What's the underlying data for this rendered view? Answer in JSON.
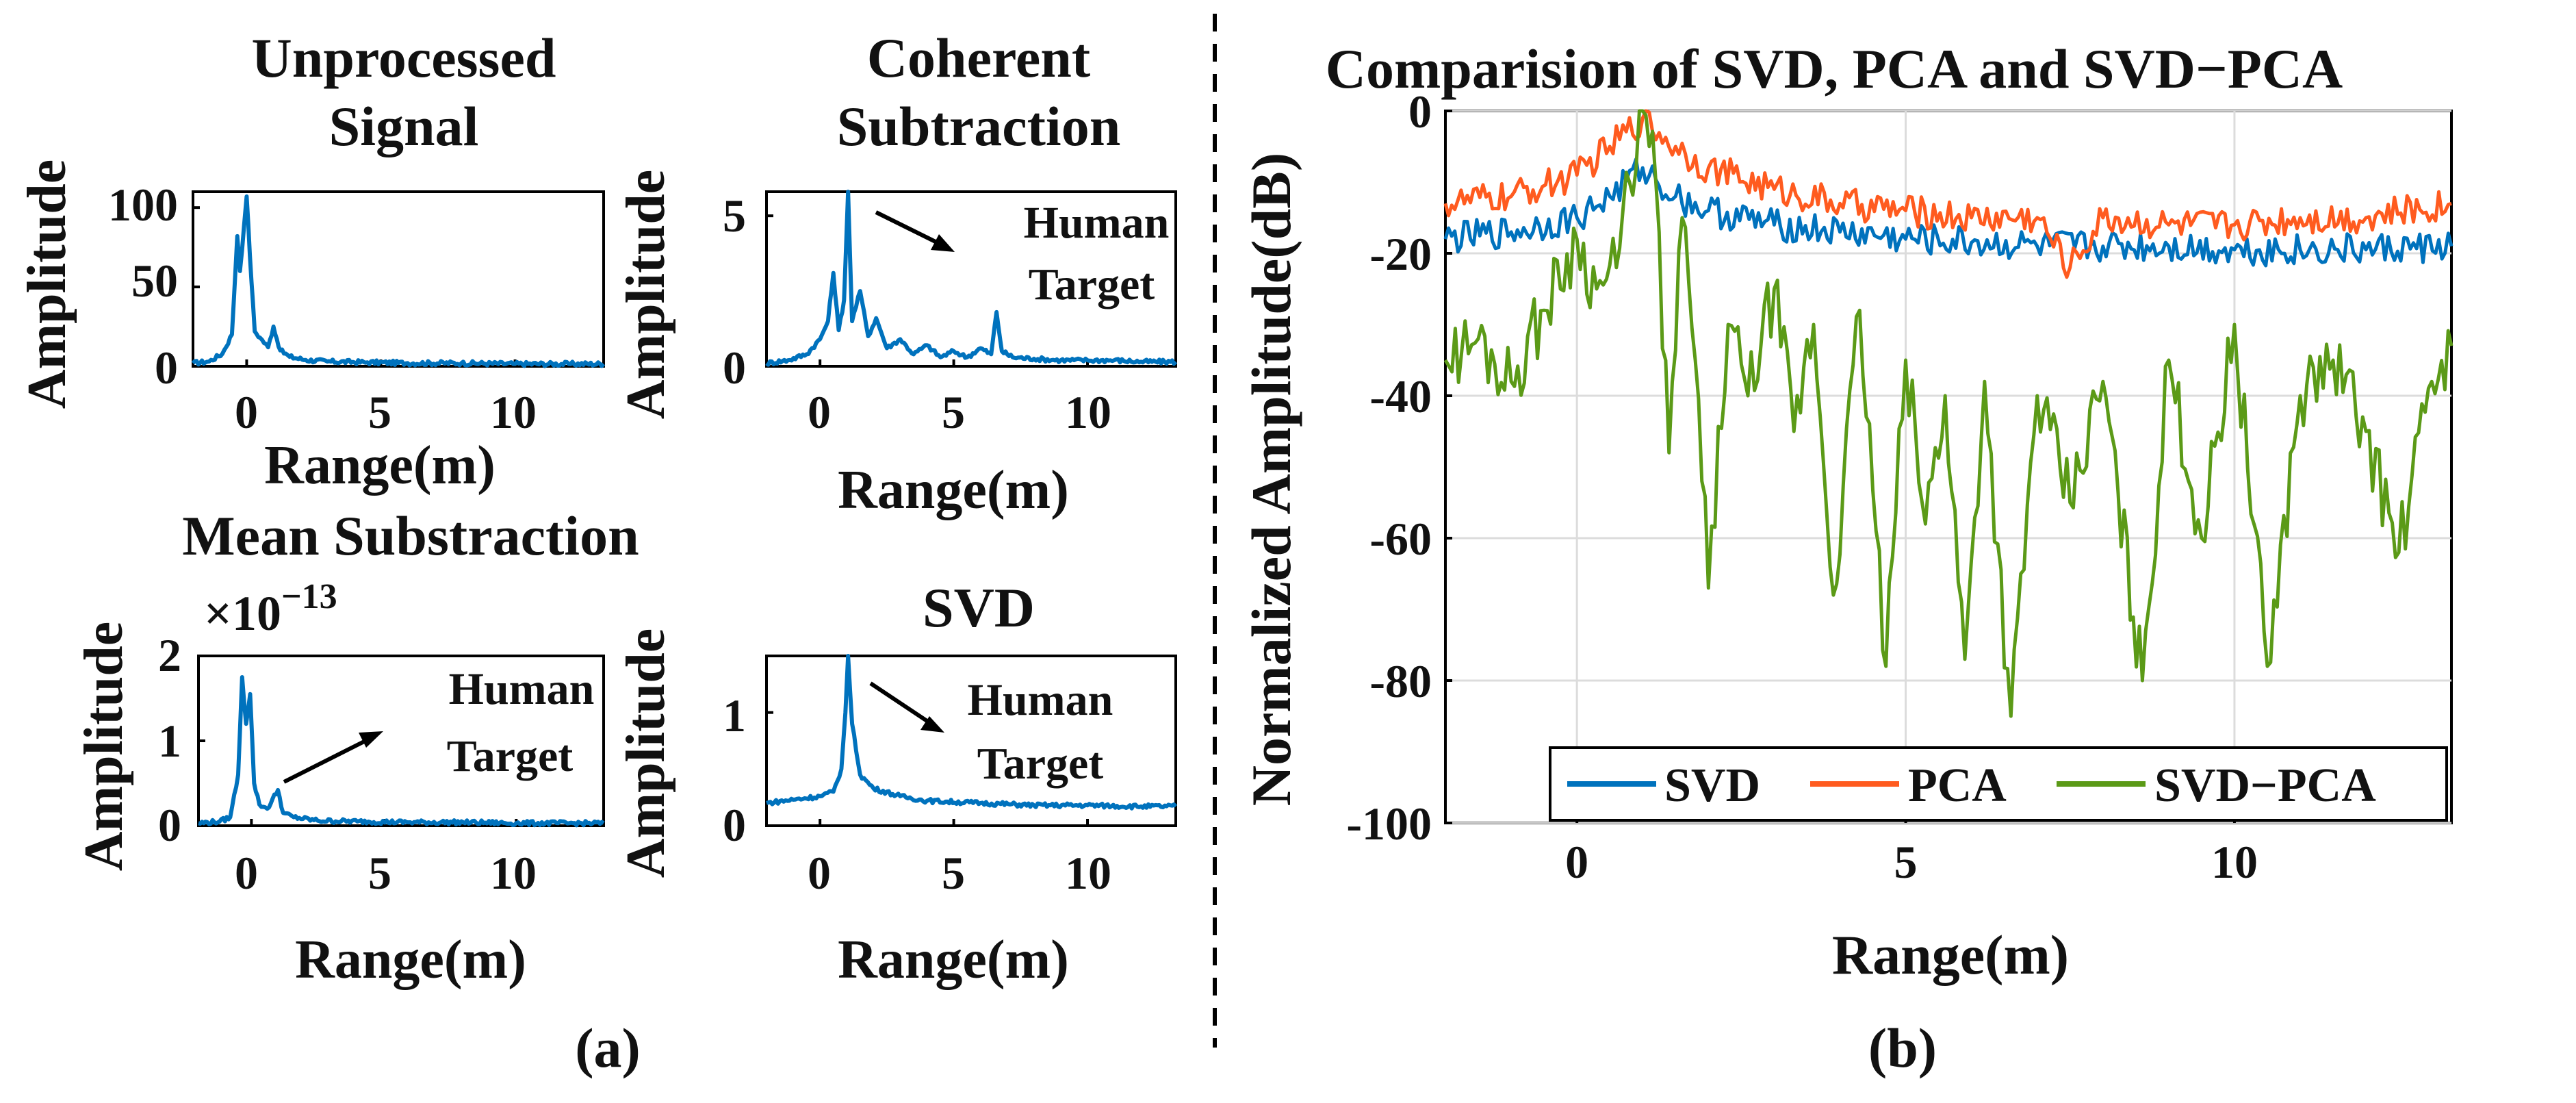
{
  "figure": {
    "label_a": "(a)",
    "label_b": "(b)",
    "colors": {
      "svd": "#0072BD",
      "pca": "#FF5B1F",
      "svd_pca": "#5B9A17",
      "axis": "#000000",
      "grid": "#dcdcdc"
    }
  },
  "chart_data": [
    {
      "id": "unprocessed",
      "type": "line",
      "title": [
        "Unprocessed",
        "Signal"
      ],
      "xlabel": "Range(m)",
      "ylabel": "Amplitude",
      "xlim": [
        -2,
        13.3
      ],
      "ylim": [
        0,
        110
      ],
      "xticks": [
        0,
        5,
        10
      ],
      "yticks": [
        0,
        50,
        100
      ],
      "series": [
        {
          "name": "Unprocessed",
          "color": "#0072BD",
          "values": [
            [
              -2,
              2
            ],
            [
              -1.4,
              3
            ],
            [
              -0.9,
              8
            ],
            [
              -0.55,
              20
            ],
            [
              -0.35,
              82
            ],
            [
              -0.25,
              60
            ],
            [
              -0.1,
              88
            ],
            [
              0,
              107
            ],
            [
              0.12,
              70
            ],
            [
              0.3,
              22
            ],
            [
              0.5,
              18
            ],
            [
              0.8,
              12
            ],
            [
              1.0,
              25
            ],
            [
              1.25,
              10
            ],
            [
              1.6,
              6
            ],
            [
              2.2,
              4
            ],
            [
              3,
              3
            ],
            [
              4.5,
              2.5
            ],
            [
              6,
              2
            ],
            [
              8,
              2
            ],
            [
              10,
              1.5
            ],
            [
              12,
              1.5
            ],
            [
              13.3,
              1.5
            ]
          ]
        }
      ]
    },
    {
      "id": "coherent",
      "type": "line",
      "title": [
        "Coherent",
        "Subtraction"
      ],
      "xlabel": "Range(m)",
      "ylabel": "Amplitude",
      "xlim": [
        -2,
        13.3
      ],
      "ylim": [
        0,
        5.8
      ],
      "xticks": [
        0,
        5,
        10
      ],
      "yticks": [
        0,
        5
      ],
      "annotation": [
        "Human",
        "Target"
      ],
      "series": [
        {
          "name": "Coherent",
          "color": "#0072BD",
          "values": [
            [
              -2,
              0.1
            ],
            [
              -1.2,
              0.2
            ],
            [
              -0.5,
              0.4
            ],
            [
              0,
              0.9
            ],
            [
              0.3,
              1.5
            ],
            [
              0.5,
              3.1
            ],
            [
              0.7,
              1.2
            ],
            [
              0.9,
              2.2
            ],
            [
              1.05,
              5.8
            ],
            [
              1.2,
              1.5
            ],
            [
              1.5,
              2.5
            ],
            [
              1.8,
              1.0
            ],
            [
              2.1,
              1.6
            ],
            [
              2.5,
              0.6
            ],
            [
              3.0,
              0.9
            ],
            [
              3.5,
              0.4
            ],
            [
              4.0,
              0.7
            ],
            [
              4.5,
              0.3
            ],
            [
              5.0,
              0.5
            ],
            [
              5.5,
              0.3
            ],
            [
              6.0,
              0.6
            ],
            [
              6.4,
              0.4
            ],
            [
              6.6,
              1.8
            ],
            [
              6.8,
              0.5
            ],
            [
              7.2,
              0.3
            ],
            [
              8,
              0.25
            ],
            [
              9,
              0.2
            ],
            [
              10,
              0.2
            ],
            [
              11,
              0.2
            ],
            [
              12,
              0.15
            ],
            [
              13.3,
              0.15
            ]
          ]
        }
      ]
    },
    {
      "id": "mean",
      "type": "line",
      "title": [
        "Mean Substraction"
      ],
      "multiplier": "×10",
      "multiplier_exp": "−13",
      "xlabel": "Range(m)",
      "ylabel": "Amplitude",
      "xlim": [
        -2,
        13.3
      ],
      "ylim": [
        0,
        2
      ],
      "xticks": [
        0,
        5,
        10
      ],
      "yticks": [
        0,
        1,
        2
      ],
      "annotation": [
        "Human",
        "Target"
      ],
      "series": [
        {
          "name": "Mean",
          "color": "#0072BD",
          "values": [
            [
              -2,
              0.03
            ],
            [
              -1.2,
              0.05
            ],
            [
              -0.8,
              0.1
            ],
            [
              -0.5,
              0.6
            ],
            [
              -0.35,
              1.75
            ],
            [
              -0.2,
              1.2
            ],
            [
              -0.05,
              1.55
            ],
            [
              0.1,
              0.5
            ],
            [
              0.3,
              0.25
            ],
            [
              0.6,
              0.2
            ],
            [
              1.0,
              0.42
            ],
            [
              1.2,
              0.15
            ],
            [
              1.6,
              0.1
            ],
            [
              2.5,
              0.06
            ],
            [
              4,
              0.05
            ],
            [
              6,
              0.04
            ],
            [
              8,
              0.04
            ],
            [
              10,
              0.03
            ],
            [
              12,
              0.03
            ],
            [
              13.3,
              0.03
            ]
          ]
        }
      ]
    },
    {
      "id": "svd",
      "type": "line",
      "title": [
        "SVD"
      ],
      "xlabel": "Range(m)",
      "ylabel": "Amplitude",
      "xlim": [
        -2,
        13.3
      ],
      "ylim": [
        0,
        1.5
      ],
      "xticks": [
        0,
        5,
        10
      ],
      "yticks": [
        0,
        1
      ],
      "annotation": [
        "Human",
        "Target"
      ],
      "series": [
        {
          "name": "SVD",
          "color": "#0072BD",
          "values": [
            [
              -2,
              0.2
            ],
            [
              -1,
              0.23
            ],
            [
              0,
              0.26
            ],
            [
              0.5,
              0.3
            ],
            [
              0.8,
              0.5
            ],
            [
              0.95,
              1.0
            ],
            [
              1.05,
              1.5
            ],
            [
              1.2,
              0.9
            ],
            [
              1.5,
              0.45
            ],
            [
              2,
              0.33
            ],
            [
              3,
              0.26
            ],
            [
              4,
              0.22
            ],
            [
              6,
              0.2
            ],
            [
              8,
              0.18
            ],
            [
              10,
              0.18
            ],
            [
              12,
              0.17
            ],
            [
              13.3,
              0.17
            ]
          ]
        }
      ]
    },
    {
      "id": "comparison",
      "type": "line",
      "title": "Comparision of SVD, PCA and SVD−PCA",
      "xlabel": "Range(m)",
      "ylabel": "Normalized Amplitude(dB)",
      "xlim": [
        -2,
        13.3
      ],
      "ylim": [
        -100,
        0
      ],
      "xticks": [
        0,
        5,
        10
      ],
      "yticks": [
        0,
        -20,
        -40,
        -60,
        -80,
        -100
      ],
      "legend_position": "bottom",
      "series": [
        {
          "name": "SVD",
          "color": "#0072BD",
          "values": [
            [
              -2,
              -18
            ],
            [
              -1,
              -17
            ],
            [
              0,
              -15
            ],
            [
              0.5,
              -12
            ],
            [
              1,
              -8
            ],
            [
              1.5,
              -12
            ],
            [
              2,
              -14
            ],
            [
              3,
              -16
            ],
            [
              4,
              -17
            ],
            [
              5,
              -18
            ],
            [
              6,
              -18.5
            ],
            [
              7,
              -19
            ],
            [
              8,
              -19
            ],
            [
              9,
              -19
            ],
            [
              10,
              -19.5
            ],
            [
              11,
              -19.5
            ],
            [
              12,
              -19.5
            ],
            [
              13.3,
              -19
            ]
          ]
        },
        {
          "name": "PCA",
          "color": "#FF5B1F",
          "values": [
            [
              -2,
              -13
            ],
            [
              -1,
              -12
            ],
            [
              0,
              -9
            ],
            [
              0.5,
              -5
            ],
            [
              1,
              -1
            ],
            [
              1.5,
              -5
            ],
            [
              2,
              -8
            ],
            [
              3,
              -11
            ],
            [
              4,
              -13
            ],
            [
              5,
              -14
            ],
            [
              6,
              -15
            ],
            [
              7,
              -15
            ],
            [
              7.5,
              -22
            ],
            [
              8,
              -15
            ],
            [
              9,
              -16
            ],
            [
              10,
              -16
            ],
            [
              11,
              -15
            ],
            [
              12,
              -15
            ],
            [
              13.3,
              -13
            ]
          ]
        },
        {
          "name": "SVD−PCA",
          "color": "#5B9A17",
          "values": [
            [
              -2,
              -35
            ],
            [
              -1.5,
              -32
            ],
            [
              -1,
              -38
            ],
            [
              -0.5,
              -28
            ],
            [
              0,
              -18
            ],
            [
              0.3,
              -25
            ],
            [
              0.6,
              -22
            ],
            [
              0.8,
              -10
            ],
            [
              1.0,
              0
            ],
            [
              1.2,
              -10
            ],
            [
              1.4,
              -48
            ],
            [
              1.6,
              -15
            ],
            [
              1.8,
              -35
            ],
            [
              2.0,
              -67
            ],
            [
              2.3,
              -30
            ],
            [
              2.6,
              -40
            ],
            [
              3,
              -25
            ],
            [
              3.3,
              -45
            ],
            [
              3.6,
              -30
            ],
            [
              3.9,
              -68
            ],
            [
              4.3,
              -28
            ],
            [
              4.7,
              -78
            ],
            [
              5,
              -35
            ],
            [
              5.3,
              -58
            ],
            [
              5.6,
              -40
            ],
            [
              5.9,
              -77
            ],
            [
              6.2,
              -38
            ],
            [
              6.6,
              -85
            ],
            [
              7,
              -40
            ],
            [
              7.5,
              -55
            ],
            [
              8,
              -38
            ],
            [
              8.6,
              -80
            ],
            [
              9,
              -35
            ],
            [
              9.5,
              -60
            ],
            [
              10,
              -30
            ],
            [
              10.5,
              -78
            ],
            [
              11,
              -40
            ],
            [
              11.5,
              -35
            ],
            [
              12,
              -45
            ],
            [
              12.5,
              -62
            ],
            [
              13,
              -38
            ],
            [
              13.3,
              -33
            ]
          ]
        }
      ]
    }
  ]
}
